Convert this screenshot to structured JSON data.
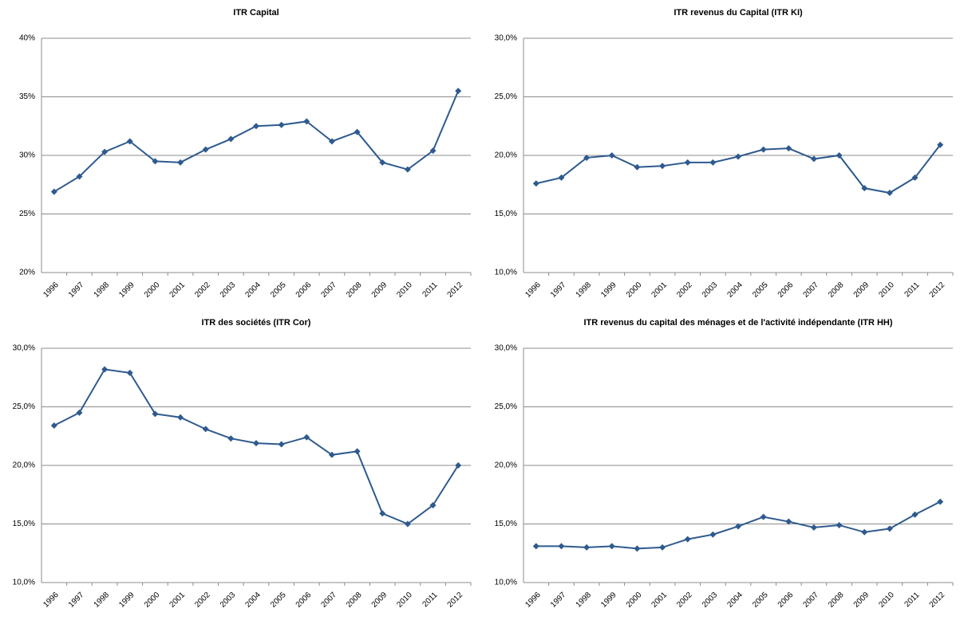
{
  "chart_data": [
    {
      "type": "line",
      "title": "ITR Capital",
      "categories": [
        "1996",
        "1997",
        "1998",
        "1999",
        "2000",
        "2001",
        "2002",
        "2003",
        "2004",
        "2005",
        "2006",
        "2007",
        "2008",
        "2009",
        "2010",
        "2011",
        "2012"
      ],
      "values": [
        26.9,
        28.2,
        30.3,
        31.2,
        29.5,
        29.4,
        30.5,
        31.4,
        32.5,
        32.6,
        32.9,
        31.2,
        32.0,
        29.4,
        28.8,
        30.4,
        35.5
      ],
      "color": "#2e5a8e",
      "grid": true,
      "ylim": [
        20,
        40
      ],
      "yticks": [
        {
          "value": 20,
          "label": "20%"
        },
        {
          "value": 25,
          "label": "25%"
        },
        {
          "value": 30,
          "label": "30%"
        },
        {
          "value": 35,
          "label": "35%"
        },
        {
          "value": 40,
          "label": "40%"
        }
      ]
    },
    {
      "type": "line",
      "title": "ITR revenus du Capital (ITR KI)",
      "categories": [
        "1996",
        "1997",
        "1998",
        "1999",
        "2000",
        "2001",
        "2002",
        "2003",
        "2004",
        "2005",
        "2006",
        "2007",
        "2008",
        "2009",
        "2010",
        "2011",
        "2012"
      ],
      "values": [
        17.6,
        18.1,
        19.8,
        20.0,
        19.0,
        19.1,
        19.4,
        19.4,
        19.9,
        20.5,
        20.6,
        19.7,
        20.0,
        17.2,
        16.8,
        18.1,
        20.9
      ],
      "color": "#2e5a8e",
      "grid": true,
      "ylim": [
        10,
        30
      ],
      "yticks": [
        {
          "value": 10,
          "label": "10,0%"
        },
        {
          "value": 15,
          "label": "15,0%"
        },
        {
          "value": 20,
          "label": "20,0%"
        },
        {
          "value": 25,
          "label": "25,0%"
        },
        {
          "value": 30,
          "label": "30,0%"
        }
      ]
    },
    {
      "type": "line",
      "title": "ITR des sociétés (ITR Cor)",
      "categories": [
        "1996",
        "1997",
        "1998",
        "1999",
        "2000",
        "2001",
        "2002",
        "2003",
        "2004",
        "2005",
        "2006",
        "2007",
        "2008",
        "2009",
        "2010",
        "2011",
        "2012"
      ],
      "values": [
        23.4,
        24.5,
        28.2,
        27.9,
        24.4,
        24.1,
        23.1,
        22.3,
        21.9,
        21.8,
        22.4,
        20.9,
        21.2,
        15.9,
        15.0,
        16.6,
        20.0
      ],
      "color": "#2e5a8e",
      "grid": true,
      "ylim": [
        10,
        30
      ],
      "yticks": [
        {
          "value": 10,
          "label": "10,0%"
        },
        {
          "value": 15,
          "label": "15,0%"
        },
        {
          "value": 20,
          "label": "20,0%"
        },
        {
          "value": 25,
          "label": "25,0%"
        },
        {
          "value": 30,
          "label": "30,0%"
        }
      ]
    },
    {
      "type": "line",
      "title": "ITR revenus du capital des ménages et de l'activité indépendante (ITR HH)",
      "categories": [
        "1996",
        "1997",
        "1998",
        "1999",
        "2000",
        "2001",
        "2002",
        "2003",
        "2004",
        "2005",
        "2006",
        "2007",
        "2008",
        "2009",
        "2010",
        "2011",
        "2012"
      ],
      "values": [
        13.1,
        13.1,
        13.0,
        13.1,
        12.9,
        13.0,
        13.7,
        14.1,
        14.8,
        15.6,
        15.2,
        14.7,
        14.9,
        14.3,
        14.6,
        15.8,
        16.9
      ],
      "color": "#2e5a8e",
      "grid": true,
      "ylim": [
        10,
        30
      ],
      "yticks": [
        {
          "value": 10,
          "label": "10,0%"
        },
        {
          "value": 15,
          "label": "15,0%"
        },
        {
          "value": 20,
          "label": "20,0%"
        },
        {
          "value": 25,
          "label": "25,0%"
        },
        {
          "value": 30,
          "label": "30,0%"
        }
      ]
    }
  ]
}
